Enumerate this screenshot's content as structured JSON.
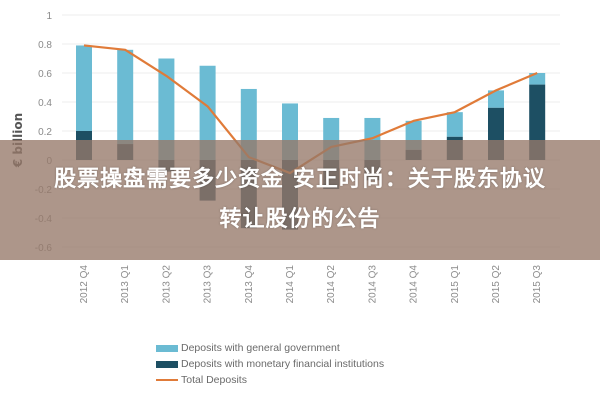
{
  "chart_data": {
    "type": "bar",
    "title": "",
    "xlabel": "",
    "ylabel": "€ billion",
    "ylim": [
      -0.6,
      1.0
    ],
    "yticks": [
      "1",
      "0.8",
      "0.6",
      "0.4",
      "0.2",
      "0",
      "-0.2",
      "-0.4",
      "-0.6"
    ],
    "grid": true,
    "legend_position": "bottom",
    "categories": [
      "2012 Q4",
      "2013 Q1",
      "2013 Q2",
      "2013 Q3",
      "2013 Q4",
      "2014 Q1",
      "2014 Q2",
      "2014 Q3",
      "2014 Q4",
      "2015 Q1",
      "2015 Q2",
      "2015 Q3"
    ],
    "series": [
      {
        "name": "Deposits with general government",
        "type": "bar",
        "color": "#6bbbd3",
        "values": [
          0.79,
          0.76,
          0.7,
          0.65,
          0.49,
          0.39,
          0.29,
          0.29,
          0.2,
          0.17,
          0.12,
          0.08
        ]
      },
      {
        "name": "Deposits with monetary financial institutions",
        "type": "bar",
        "color": "#1d4f63",
        "values": [
          0.2,
          0.11,
          -0.08,
          -0.28,
          -0.47,
          -0.48,
          -0.2,
          -0.14,
          0.07,
          0.16,
          0.36,
          0.52
        ]
      },
      {
        "name": "Total Deposits",
        "type": "line",
        "color": "#e07b39",
        "values": [
          0.79,
          0.76,
          0.58,
          0.37,
          0.02,
          -0.09,
          0.09,
          0.15,
          0.27,
          0.33,
          0.48,
          0.6
        ]
      }
    ]
  },
  "overlay": {
    "line1": "股票操盘需要多少资金 安正时尚：关于股东协议",
    "line2": "转让股份的公告"
  },
  "legend": [
    {
      "label": "Deposits with general government",
      "color": "#6bbbd3",
      "kind": "bar"
    },
    {
      "label": "Deposits with monetary financial institutions",
      "color": "#1d4f63",
      "kind": "bar"
    },
    {
      "label": "Total Deposits",
      "color": "#e07b39",
      "kind": "line"
    }
  ]
}
